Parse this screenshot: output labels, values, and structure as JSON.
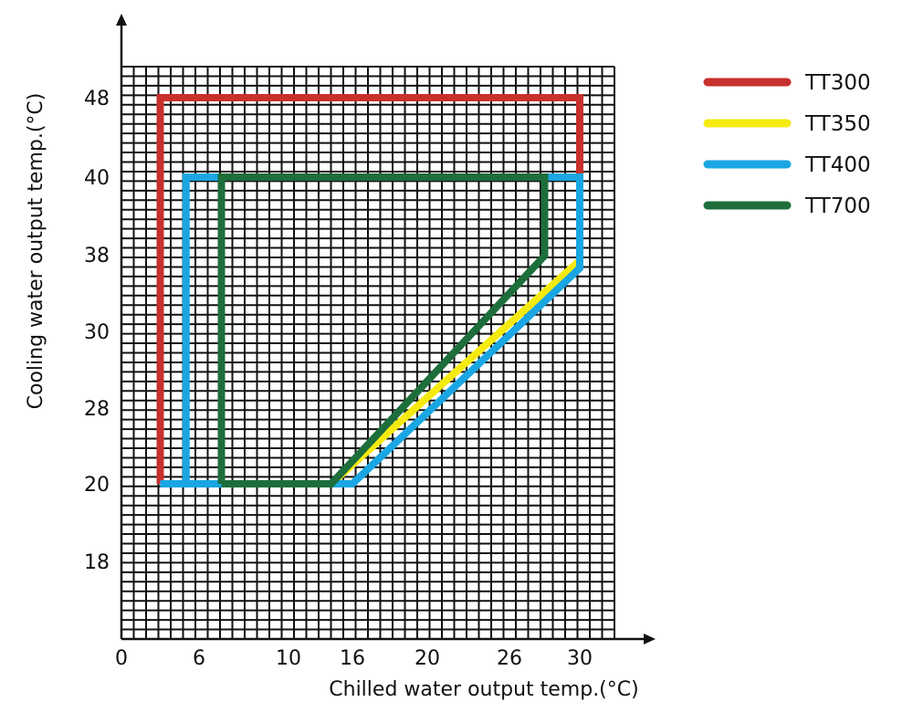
{
  "chart_data": {
    "type": "line",
    "title": "",
    "xlabel": "Chilled water output temp.(°C)",
    "ylabel": "Cooling water output temp.(°C)",
    "x_ticks": [
      "0",
      "6",
      "10",
      "16",
      "20",
      "26",
      "30"
    ],
    "y_ticks": [
      "18",
      "20",
      "28",
      "30",
      "38",
      "40",
      "48"
    ],
    "grid": true,
    "legend_position": "top-right",
    "series": [
      {
        "name": "TT300",
        "color": "#c8302c",
        "points": [
          [
            3,
            20
          ],
          [
            3,
            48
          ],
          [
            30,
            48
          ],
          [
            30,
            39
          ]
        ]
      },
      {
        "name": "TT350",
        "color": "#f5ea0f",
        "points": [
          [
            14,
            20
          ],
          [
            30,
            37.4
          ]
        ]
      },
      {
        "name": "TT400",
        "color": "#1aa6e3",
        "points": [
          [
            3,
            20
          ],
          [
            16,
            20
          ],
          [
            30,
            36.6
          ],
          [
            30,
            40
          ],
          [
            5,
            40
          ],
          [
            5,
            20
          ]
        ]
      },
      {
        "name": "TT700",
        "color": "#1d6e3b",
        "points": [
          [
            7,
            20
          ],
          [
            7,
            40
          ],
          [
            28,
            40
          ],
          [
            28,
            37.9
          ],
          [
            14,
            20
          ],
          [
            7,
            20
          ]
        ]
      }
    ]
  }
}
